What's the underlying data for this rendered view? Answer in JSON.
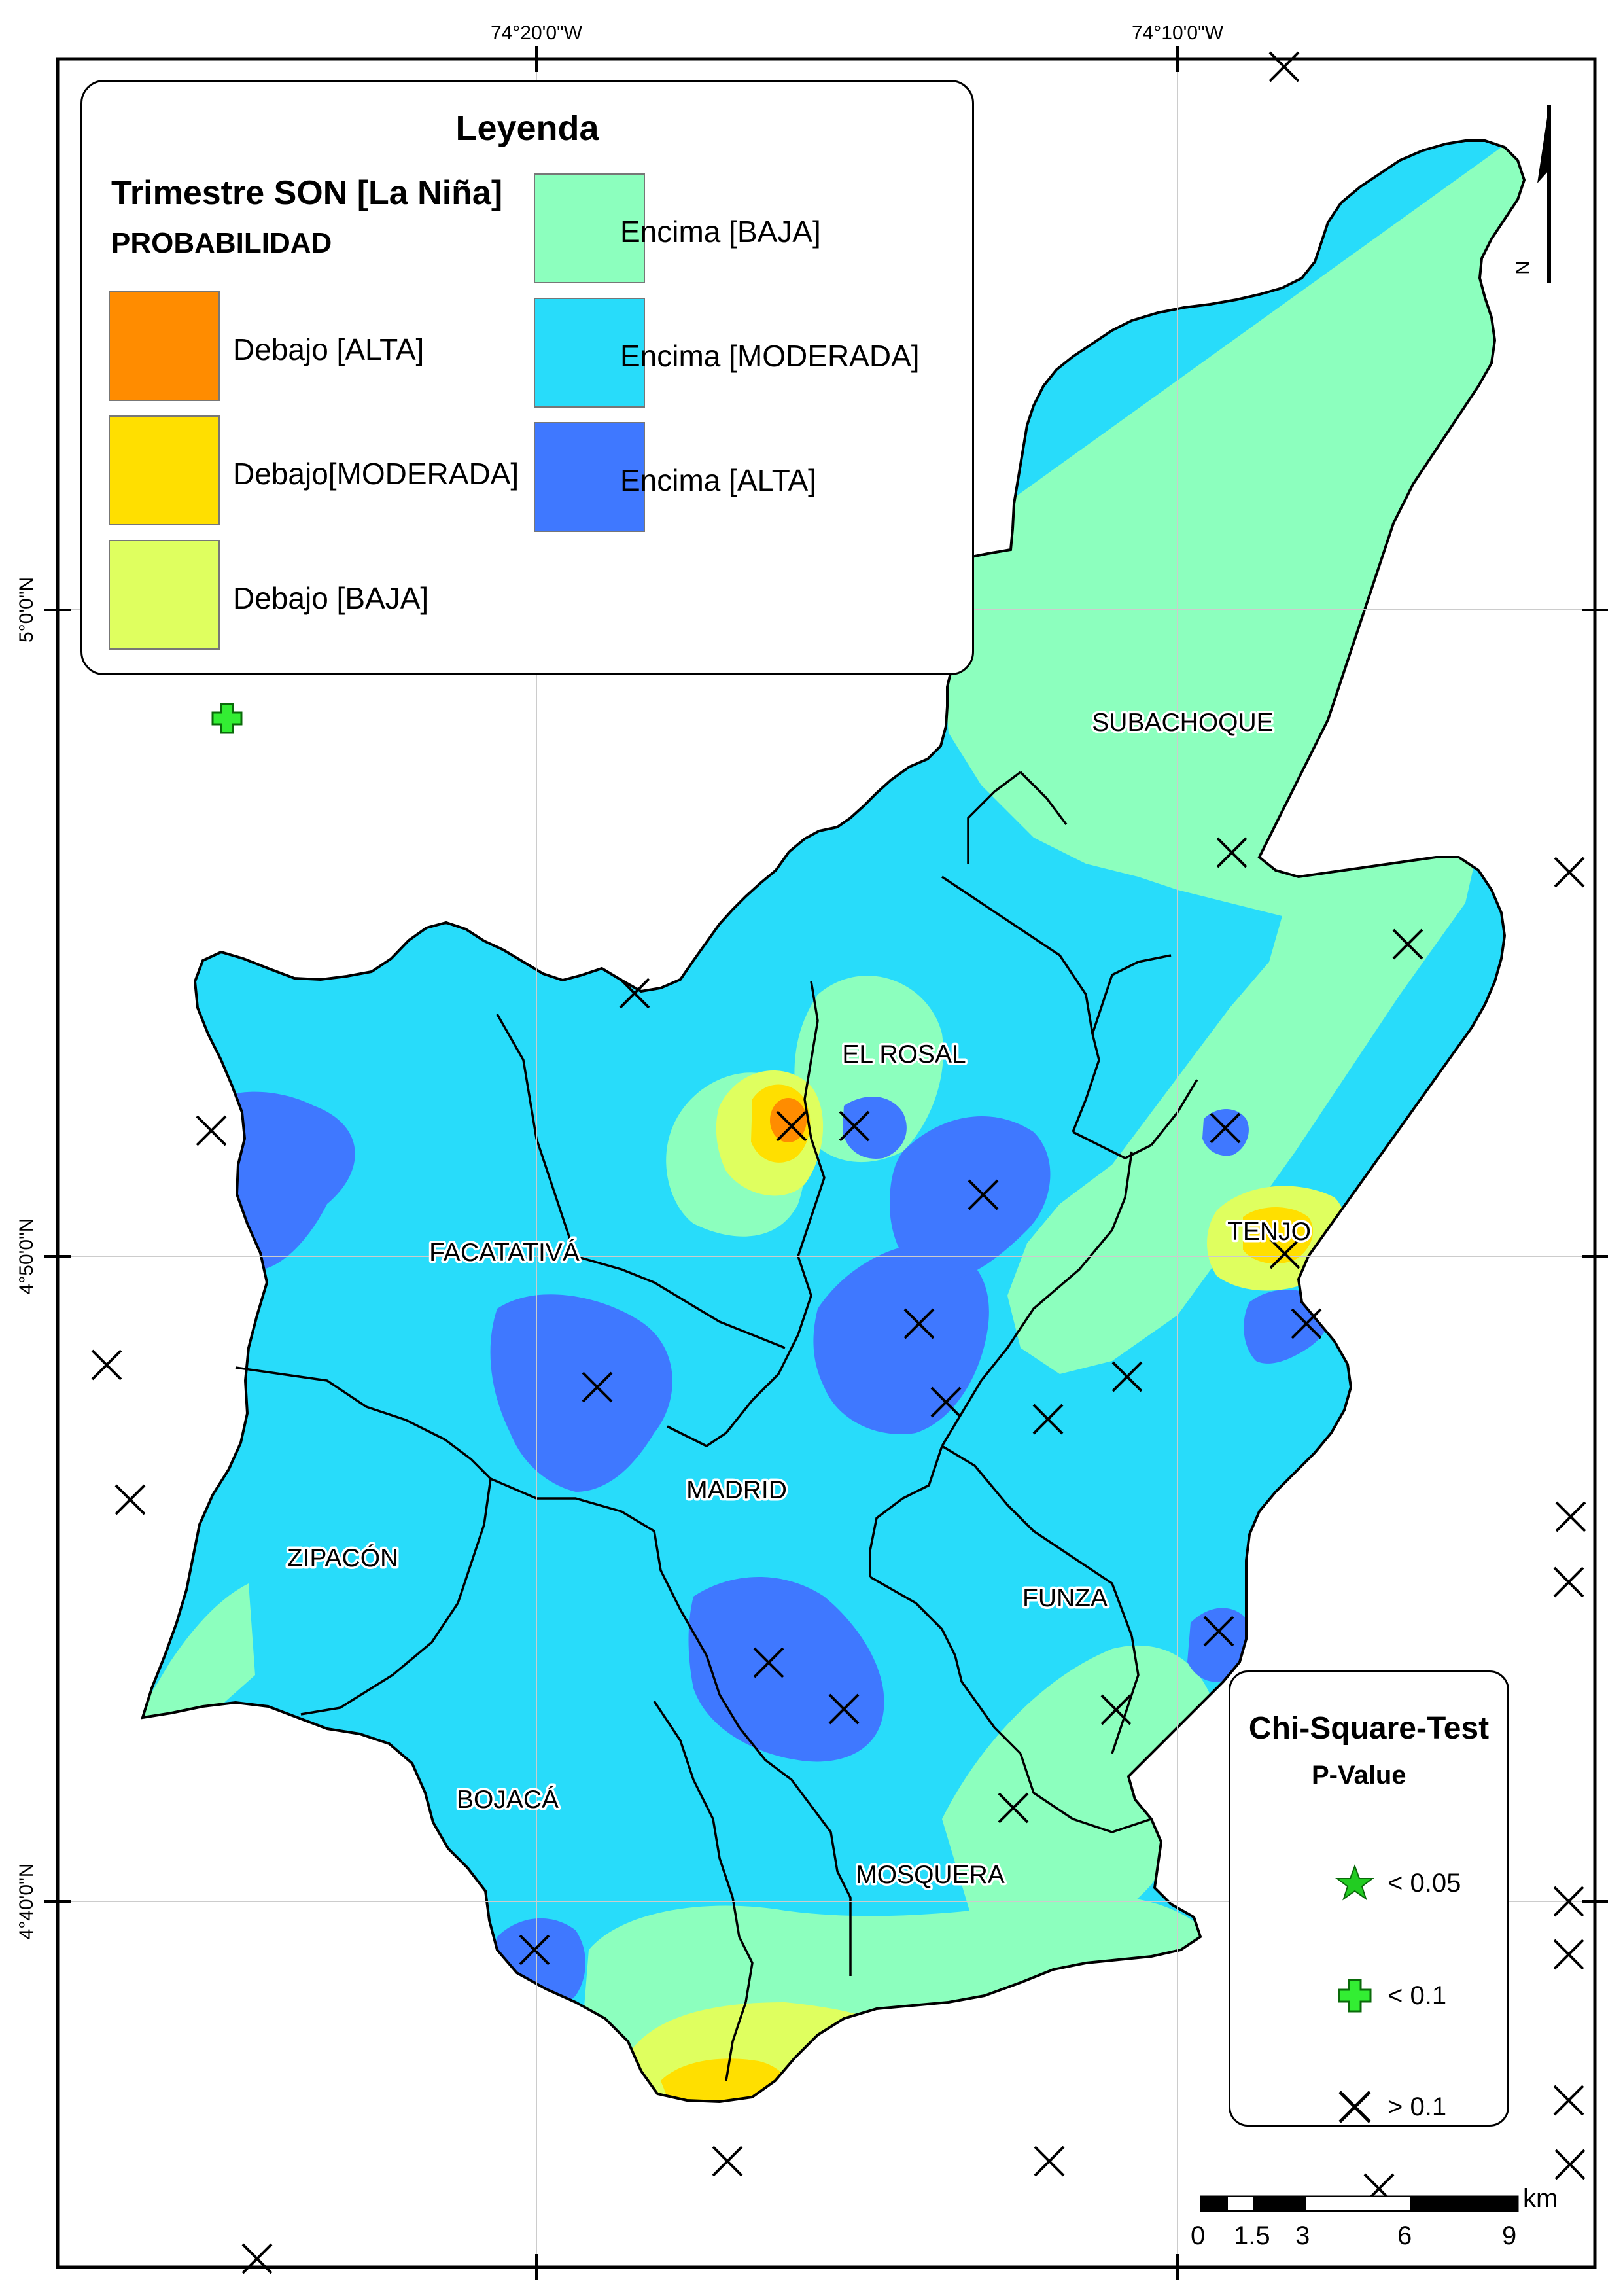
{
  "coordinates": {
    "top": [
      "74°20'0\"W",
      "74°10'0\"W"
    ],
    "left": [
      "5°0'0\"N",
      "4°50'0\"N",
      "4°40'0\"N"
    ]
  },
  "municipalities": [
    "SUBACHOQUE",
    "EL ROSAL",
    "FACATATIVÁ",
    "TENJO",
    "MADRID",
    "ZIPACÓN",
    "FUNZA",
    "BOJACÁ",
    "MOSQUERA"
  ],
  "legend": {
    "title": "Leyenda",
    "subtitle": "Trimestre SON [La Niña]",
    "category": "PROBABILIDAD",
    "items": [
      {
        "label": "Debajo [ALTA]",
        "color": "#ff8c00"
      },
      {
        "label": "Debajo[MODERADA]",
        "color": "#ffdf00"
      },
      {
        "label": "Debajo [BAJA]",
        "color": "#dfff5f"
      },
      {
        "label": "Encima [BAJA]",
        "color": "#8cffbe"
      },
      {
        "label": "Encima [MODERADA]",
        "color": "#28dcfa"
      },
      {
        "label": "Encima [ALTA]",
        "color": "#3f78ff"
      }
    ]
  },
  "chi_square": {
    "title": "Chi-Square-Test",
    "subtitle": "P-Value",
    "items": [
      {
        "label": "< 0.05",
        "symbol": "star",
        "color": "#22cc22"
      },
      {
        "label": "< 0.1",
        "symbol": "plus",
        "color": "#33ee33"
      },
      {
        "label": "> 0.1",
        "symbol": "cross",
        "color": "#000000"
      }
    ]
  },
  "scale": {
    "unit": "km",
    "ticks": [
      "0",
      "1.5",
      "3",
      "6",
      "9"
    ]
  },
  "north_label": "N"
}
